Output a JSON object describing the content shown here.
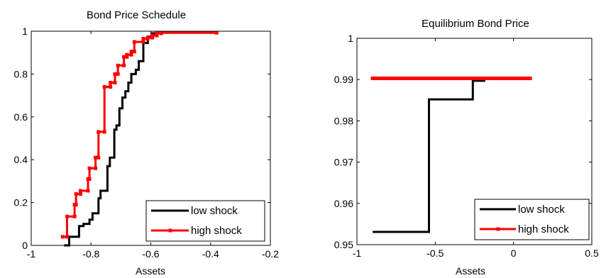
{
  "chart_data": [
    {
      "type": "line",
      "title": "Bond Price Schedule",
      "xlabel": "Assets",
      "ylabel": "",
      "xlim": [
        -1,
        -0.2
      ],
      "ylim": [
        0,
        1
      ],
      "xticks": [
        -1,
        -0.8,
        -0.6,
        -0.4,
        -0.2
      ],
      "xtick_labels": [
        "-1",
        "-0.8",
        "-0.6",
        "-0.4",
        "-0.2"
      ],
      "yticks": [
        0,
        0.2,
        0.4,
        0.6,
        0.8,
        1
      ],
      "ytick_labels": [
        "0",
        "0.2",
        "0.4",
        "0.6",
        "0.8",
        "1"
      ],
      "legend_position": "bottom-right",
      "grid": false,
      "series": [
        {
          "name": "low shock",
          "color": "#000000",
          "marker": "none",
          "step": true,
          "points": [
            [
              -0.89,
              0.0
            ],
            [
              -0.873,
              0.04
            ],
            [
              -0.84,
              0.09
            ],
            [
              -0.825,
              0.1
            ],
            [
              -0.805,
              0.12
            ],
            [
              -0.795,
              0.15
            ],
            [
              -0.775,
              0.22
            ],
            [
              -0.768,
              0.255
            ],
            [
              -0.745,
              0.37
            ],
            [
              -0.737,
              0.41
            ],
            [
              -0.722,
              0.54
            ],
            [
              -0.715,
              0.56
            ],
            [
              -0.705,
              0.64
            ],
            [
              -0.695,
              0.69
            ],
            [
              -0.685,
              0.72
            ],
            [
              -0.675,
              0.76
            ],
            [
              -0.665,
              0.8
            ],
            [
              -0.65,
              0.82
            ],
            [
              -0.64,
              0.86
            ],
            [
              -0.625,
              0.945
            ],
            [
              -0.61,
              0.975
            ],
            [
              -0.595,
              0.99
            ],
            [
              -0.57,
              0.993
            ],
            [
              -0.38,
              0.993
            ]
          ]
        },
        {
          "name": "high shock",
          "color": "#ff0000",
          "marker": "square",
          "step": true,
          "points": [
            [
              -0.895,
              0.04
            ],
            [
              -0.88,
              0.135
            ],
            [
              -0.855,
              0.19
            ],
            [
              -0.85,
              0.24
            ],
            [
              -0.835,
              0.255
            ],
            [
              -0.81,
              0.31
            ],
            [
              -0.805,
              0.36
            ],
            [
              -0.785,
              0.41
            ],
            [
              -0.775,
              0.53
            ],
            [
              -0.755,
              0.74
            ],
            [
              -0.735,
              0.76
            ],
            [
              -0.72,
              0.8
            ],
            [
              -0.71,
              0.84
            ],
            [
              -0.69,
              0.88
            ],
            [
              -0.68,
              0.89
            ],
            [
              -0.665,
              0.905
            ],
            [
              -0.655,
              0.95
            ],
            [
              -0.625,
              0.965
            ],
            [
              -0.61,
              0.97
            ],
            [
              -0.595,
              0.98
            ],
            [
              -0.58,
              0.99
            ],
            [
              -0.565,
              0.993
            ],
            [
              -0.38,
              0.993
            ]
          ]
        }
      ]
    },
    {
      "type": "line",
      "title": "Equilibrium Bond Price",
      "xlabel": "Assets",
      "ylabel": "",
      "xlim": [
        -1,
        0.5
      ],
      "ylim": [
        0.95,
        1
      ],
      "xticks": [
        -1,
        -0.5,
        0,
        0.5
      ],
      "xtick_labels": [
        "-1",
        "-0.5",
        "0",
        "0.5"
      ],
      "yticks": [
        0.95,
        0.96,
        0.97,
        0.98,
        0.99,
        1
      ],
      "ytick_labels": [
        "0.95",
        "0.96",
        "0.97",
        "0.98",
        "0.99",
        "1"
      ],
      "legend_position": "bottom-right",
      "grid": false,
      "series": [
        {
          "name": "low shock",
          "color": "#000000",
          "marker": "none",
          "step": true,
          "points": [
            [
              -0.9,
              0.9531
            ],
            [
              -0.54,
              0.9531
            ],
            [
              -0.54,
              0.9852
            ],
            [
              -0.26,
              0.9852
            ],
            [
              -0.26,
              0.9897
            ],
            [
              -0.18,
              0.9897
            ]
          ]
        },
        {
          "name": "high shock",
          "color": "#ff0000",
          "marker": "square",
          "step": false,
          "points": [
            [
              -0.9,
              0.9903
            ],
            [
              0.11,
              0.9903
            ]
          ]
        }
      ]
    }
  ]
}
